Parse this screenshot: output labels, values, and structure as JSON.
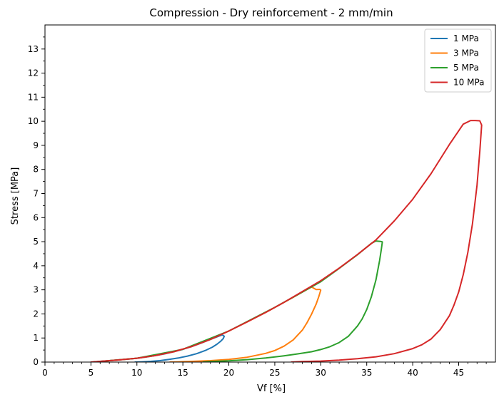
{
  "chart_data": {
    "type": "line",
    "title": "Compression - Dry reinforcement - 2 mm/min",
    "xlabel": "Vf [%]",
    "ylabel": "Stress [MPa]",
    "xlim": [
      0,
      49
    ],
    "ylim": [
      0,
      14
    ],
    "xticks": [
      0,
      5,
      10,
      15,
      20,
      25,
      30,
      35,
      40,
      45
    ],
    "yticks": [
      0,
      1,
      2,
      3,
      4,
      5,
      6,
      7,
      8,
      9,
      10,
      11,
      12,
      13
    ],
    "grid": false,
    "legend_position": "top-right",
    "series": [
      {
        "name": "1 MPa",
        "color": "#1f77b4",
        "x": [
          5.2,
          6.0,
          7.0,
          8.0,
          9.0,
          10.0,
          11.0,
          12.0,
          13.0,
          14.0,
          15.0,
          16.0,
          17.0,
          18.0,
          19.0,
          19.3,
          19.5,
          19.4,
          19.1,
          18.7,
          18.2,
          17.5,
          16.5,
          15.5,
          14.5,
          13.5,
          12.5,
          11.5,
          10.5,
          9.8
        ],
        "y": [
          0.0,
          0.03,
          0.06,
          0.09,
          0.12,
          0.16,
          0.21,
          0.27,
          0.34,
          0.43,
          0.53,
          0.65,
          0.79,
          0.94,
          1.09,
          1.13,
          1.07,
          0.98,
          0.86,
          0.74,
          0.62,
          0.49,
          0.35,
          0.25,
          0.17,
          0.11,
          0.06,
          0.03,
          0.01,
          0.0
        ]
      },
      {
        "name": "3 MPa",
        "color": "#ff7f0e",
        "x": [
          5.2,
          8.0,
          10.0,
          12.0,
          14.0,
          16.0,
          18.0,
          20.0,
          22.0,
          24.0,
          26.0,
          27.0,
          28.0,
          29.0,
          29.5,
          29.9,
          30.0,
          29.8,
          29.5,
          29.0,
          28.5,
          28.0,
          27.0,
          26.0,
          25.0,
          24.0,
          22.0,
          20.0,
          18.0,
          16.0,
          14.5,
          13.6
        ],
        "y": [
          0.0,
          0.09,
          0.16,
          0.27,
          0.43,
          0.65,
          0.94,
          1.29,
          1.67,
          2.06,
          2.48,
          2.69,
          2.91,
          3.12,
          3.01,
          3.02,
          2.99,
          2.74,
          2.41,
          1.99,
          1.63,
          1.33,
          0.92,
          0.66,
          0.48,
          0.36,
          0.2,
          0.11,
          0.06,
          0.03,
          0.01,
          0.0
        ]
      },
      {
        "name": "5 MPa",
        "color": "#2ca02c",
        "x": [
          5.2,
          10.0,
          15.0,
          20.0,
          25.0,
          28.0,
          30.0,
          32.0,
          34.0,
          35.5,
          36.0,
          36.5,
          36.7,
          36.6,
          36.4,
          36.0,
          35.5,
          35.0,
          34.5,
          34.0,
          33.0,
          32.0,
          31.0,
          30.0,
          29.0,
          27.5,
          26.0,
          24.0,
          22.0,
          20.0,
          18.0,
          17.2
        ],
        "y": [
          0.0,
          0.16,
          0.53,
          1.29,
          2.27,
          2.91,
          3.34,
          3.89,
          4.46,
          4.93,
          5.03,
          5.01,
          4.99,
          4.71,
          4.21,
          3.41,
          2.71,
          2.18,
          1.79,
          1.5,
          1.07,
          0.81,
          0.64,
          0.52,
          0.43,
          0.34,
          0.26,
          0.17,
          0.1,
          0.05,
          0.02,
          0.0
        ]
      },
      {
        "name": "10 MPa",
        "color": "#d62728",
        "x": [
          5.0,
          8.0,
          10.0,
          12.0,
          14.0,
          16.0,
          18.0,
          20.0,
          22.0,
          24.0,
          26.0,
          28.0,
          30.0,
          32.0,
          34.0,
          36.0,
          38.0,
          40.0,
          42.0,
          44.0,
          45.5,
          46.3,
          46.8,
          47.3,
          47.5,
          47.3,
          47.0,
          46.5,
          46.0,
          45.5,
          45.0,
          44.5,
          44.0,
          43.0,
          42.0,
          41.0,
          40.0,
          38.0,
          36.0,
          34.0,
          32.0,
          30.0,
          28.0,
          26.8
        ],
        "y": [
          0.0,
          0.09,
          0.16,
          0.27,
          0.43,
          0.65,
          0.94,
          1.29,
          1.67,
          2.06,
          2.48,
          2.93,
          3.38,
          3.9,
          4.47,
          5.07,
          5.86,
          6.76,
          7.83,
          9.04,
          9.88,
          10.03,
          10.03,
          10.02,
          9.84,
          8.74,
          7.34,
          5.74,
          4.56,
          3.63,
          2.91,
          2.38,
          1.93,
          1.35,
          0.96,
          0.72,
          0.56,
          0.35,
          0.22,
          0.14,
          0.08,
          0.04,
          0.02,
          0.0
        ]
      }
    ]
  }
}
